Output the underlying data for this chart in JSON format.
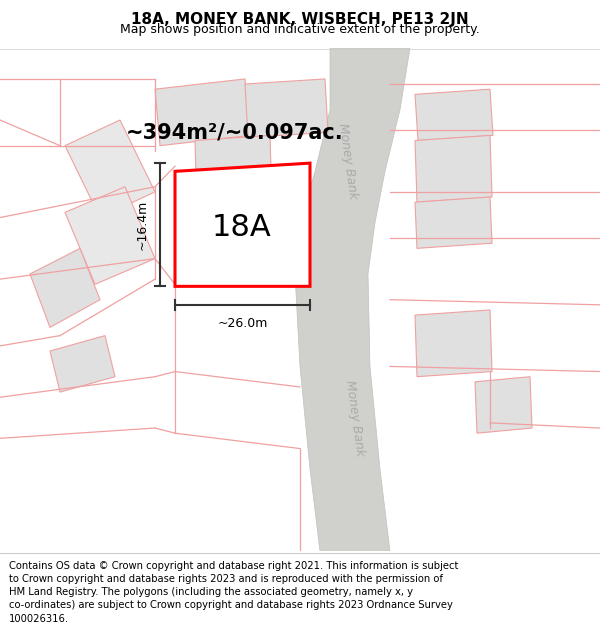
{
  "title_line1": "18A, MONEY BANK, WISBECH, PE13 2JN",
  "title_line2": "Map shows position and indicative extent of the property.",
  "area_text": "~394m²/~0.097ac.",
  "label_18A": "18A",
  "dim_width": "~26.0m",
  "dim_height": "~16.4m",
  "road_label": "Money Bank",
  "footer_text": "Contains OS data © Crown copyright and database right 2021. This information is subject\nto Crown copyright and database rights 2023 and is reproduced with the permission of\nHM Land Registry. The polygons (including the associated geometry, namely x, y\nco-ordinates) are subject to Crown copyright and database rights 2023 Ordnance Survey\n100026316.",
  "map_bg": "#f5f5f5",
  "plot_edge": "#ff0000",
  "building_fill": "#d8d8d8",
  "building_edge": "#bbbbbb",
  "other_plot_edge": "#f0a0a0",
  "road_fill": "#d0d0cc",
  "road_edge": "#c0c0bc",
  "dim_line_color": "#333333",
  "title_fontsize": 11,
  "subtitle_fontsize": 9,
  "label_fontsize": 22,
  "area_fontsize": 15,
  "dim_fontsize": 9,
  "road_label_fontsize": 9,
  "footer_fontsize": 7.2
}
